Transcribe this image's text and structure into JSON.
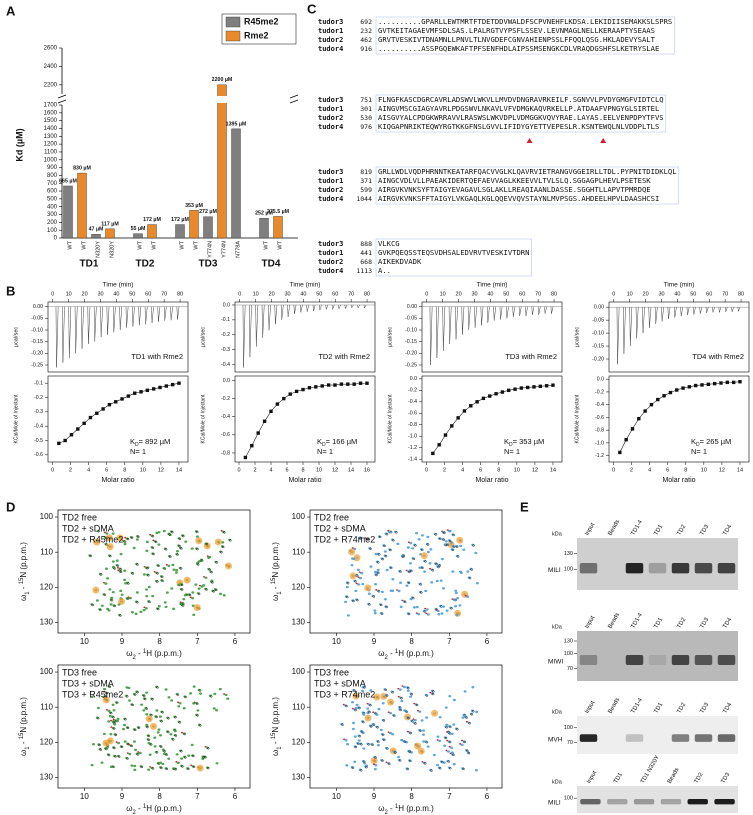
{
  "panel_labels": [
    "A",
    "B",
    "C",
    "D",
    "E"
  ],
  "chart_data": [
    {
      "type": "bar",
      "y_label": "Kd (µM)",
      "categories": [
        "WT",
        "WT",
        "N320Y",
        "N320Y",
        "WT",
        "WT",
        "WT",
        "WT",
        "Y774N",
        "Y774N",
        "N778A",
        "WT",
        "WT"
      ],
      "groups": [
        "TD1",
        "TD2",
        "TD3",
        "TD4"
      ],
      "series": [
        {
          "name": "R45me2",
          "color": "#7f7f7f",
          "values": [
            665,
            null,
            47,
            null,
            55,
            null,
            172,
            null,
            272,
            null,
            1395,
            252,
            null
          ],
          "value_labels": [
            "665 µM",
            null,
            "47 µM",
            null,
            "55 µM",
            null,
            "172 µM",
            null,
            "272 µM",
            null,
            "1395 µM",
            "252 µM",
            null
          ]
        },
        {
          "name": "Rme2",
          "color": "#e8892b",
          "values": [
            null,
            830,
            null,
            117,
            null,
            172,
            null,
            353,
            null,
            2200,
            null,
            null,
            275.5
          ],
          "value_labels": [
            null,
            "830 µM",
            null,
            "117 µM",
            null,
            "172 µM",
            null,
            "353 µM",
            null,
            "2200 µM",
            null,
            null,
            "275.5 µM"
          ]
        }
      ],
      "ylim": [
        0,
        2600
      ],
      "y_break": [
        1700,
        2100
      ],
      "yticks": [
        0,
        100,
        200,
        300,
        400,
        500,
        600,
        700,
        800,
        900,
        1000,
        1100,
        1200,
        1300,
        1400,
        1500,
        1600,
        1700,
        2200,
        2400,
        2600
      ]
    },
    {
      "type": "itc",
      "title": "TD1 with Rme2",
      "time_label": "Time (min)",
      "raw_label": "µcal/sec",
      "time_xlim": [
        -3,
        85
      ],
      "time_xticks": [
        0,
        10,
        20,
        30,
        40,
        50,
        60,
        70,
        80
      ],
      "raw_ylim": [
        -0.28,
        0.02
      ],
      "raw_yticks": [
        {
          "value": 0,
          "label": "0.00"
        },
        -0.05,
        {
          "value": -0.1,
          "label": "-0.10"
        },
        -0.15,
        {
          "value": -0.2,
          "label": "-0.20"
        },
        -0.25
      ],
      "peak_times": [
        2,
        6,
        10,
        14,
        18,
        22,
        26,
        30,
        34,
        38,
        42,
        46,
        50,
        54,
        58,
        62,
        66,
        70,
        74,
        78
      ],
      "peak_values": [
        -0.26,
        -0.24,
        -0.22,
        -0.2,
        -0.18,
        -0.16,
        -0.15,
        -0.13,
        -0.12,
        -0.11,
        -0.1,
        -0.09,
        -0.085,
        -0.08,
        -0.075,
        -0.07,
        -0.065,
        -0.06,
        -0.058,
        -0.055
      ],
      "x_label": "Molar ratio",
      "y_label": "KCal/Mole of Injectant",
      "xlim": [
        -0.5,
        15
      ],
      "xticks": [
        0,
        2,
        4,
        6,
        8,
        10,
        12,
        14
      ],
      "ylim": [
        -0.65,
        -0.05
      ],
      "yticks": [
        -0.6,
        -0.5,
        -0.4,
        -0.3,
        -0.2,
        -0.1
      ],
      "x": [
        0.7,
        1.4,
        2.1,
        2.8,
        3.5,
        4.2,
        4.9,
        5.6,
        6.3,
        7,
        7.7,
        8.4,
        9.1,
        9.8,
        10.5,
        11.2,
        11.9,
        12.6,
        13.3,
        14
      ],
      "values": [
        -0.52,
        -0.5,
        -0.46,
        -0.42,
        -0.38,
        -0.34,
        -0.31,
        -0.28,
        -0.25,
        -0.23,
        -0.21,
        -0.19,
        -0.17,
        -0.16,
        -0.15,
        -0.14,
        -0.13,
        -0.12,
        -0.11,
        -0.1
      ],
      "kd": [
        "K",
        "D",
        "= 892 µM"
      ],
      "n_label": "N= 1"
    },
    {
      "type": "itc",
      "title": "TD2 with Rme2",
      "time_label": "Time (min)",
      "raw_label": "µcal/sec",
      "time_xlim": [
        -3,
        85
      ],
      "time_xticks": [
        0,
        10,
        20,
        30,
        40,
        50,
        60,
        70,
        80
      ],
      "raw_ylim": [
        -0.45,
        0.02
      ],
      "raw_yticks": [
        {
          "value": 0,
          "label": "0.0"
        },
        -0.1,
        -0.2,
        -0.3,
        -0.4
      ],
      "peak_times": [
        2,
        6,
        10,
        14,
        18,
        22,
        26,
        30,
        34,
        38,
        42,
        46,
        50,
        54,
        58,
        62,
        66,
        70,
        74,
        78
      ],
      "peak_values": [
        -0.42,
        -0.35,
        -0.28,
        -0.22,
        -0.17,
        -0.13,
        -0.1,
        -0.08,
        -0.06,
        -0.05,
        -0.045,
        -0.04,
        -0.035,
        -0.03,
        -0.03,
        -0.025,
        -0.025,
        -0.02,
        -0.02,
        -0.02
      ],
      "x_label": "Molar ratio",
      "y_label": "KCal/Mole of Injectant",
      "xlim": [
        -0.5,
        17
      ],
      "xticks": [
        0,
        2,
        4,
        6,
        8,
        10,
        12,
        14,
        16
      ],
      "ylim": [
        -0.9,
        0.05
      ],
      "yticks": [
        -0.8,
        -0.6,
        -0.4,
        -0.2,
        {
          "value": 0,
          "label": "0.0"
        }
      ],
      "x": [
        0.8,
        1.6,
        2.4,
        3.2,
        4,
        4.8,
        5.6,
        6.4,
        7.2,
        8,
        8.8,
        9.6,
        10.4,
        11.2,
        12,
        12.8,
        13.6,
        14.4,
        15.2,
        16
      ],
      "values": [
        -0.85,
        -0.72,
        -0.58,
        -0.45,
        -0.34,
        -0.26,
        -0.2,
        -0.15,
        -0.12,
        -0.1,
        -0.08,
        -0.07,
        -0.06,
        -0.05,
        -0.05,
        -0.04,
        -0.04,
        -0.04,
        -0.03,
        -0.03
      ],
      "kd": [
        "K",
        "D",
        "= 166 µM"
      ],
      "n_label": "N= 1"
    },
    {
      "type": "itc",
      "title": "TD3 with Rme2",
      "time_label": "Time (min)",
      "raw_label": "µcal/sec",
      "time_xlim": [
        -3,
        85
      ],
      "time_xticks": [
        0,
        10,
        20,
        30,
        40,
        50,
        60,
        70,
        80
      ],
      "raw_ylim": [
        -0.28,
        0.02
      ],
      "raw_yticks": [
        {
          "value": 0,
          "label": "0.00"
        },
        -0.05,
        {
          "value": -0.1,
          "label": "-0.10"
        },
        -0.15,
        {
          "value": -0.2,
          "label": "-0.20"
        },
        -0.25
      ],
      "peak_times": [
        2,
        6,
        10,
        14,
        18,
        22,
        26,
        30,
        34,
        38,
        42,
        46,
        50,
        54,
        58,
        62,
        66,
        70,
        74,
        78
      ],
      "peak_values": [
        -0.25,
        -0.22,
        -0.19,
        -0.16,
        -0.14,
        -0.12,
        -0.1,
        -0.09,
        -0.08,
        -0.07,
        -0.06,
        -0.055,
        -0.05,
        -0.045,
        -0.04,
        -0.04,
        -0.035,
        -0.035,
        -0.03,
        -0.03
      ],
      "x_label": "Molar ratio",
      "y_label": "KCal/Mole of Injectant",
      "xlim": [
        -0.5,
        15
      ],
      "xticks": [
        0,
        2,
        4,
        6,
        8,
        10,
        12,
        14
      ],
      "ylim": [
        -1.45,
        0.05
      ],
      "yticks": [
        -1.4,
        -1.2,
        {
          "value": -1,
          "label": "-1.0"
        },
        -0.8,
        -0.6,
        -0.4,
        -0.2,
        {
          "value": 0,
          "label": "0.0"
        }
      ],
      "x": [
        0.7,
        1.4,
        2.1,
        2.8,
        3.5,
        4.2,
        4.9,
        5.6,
        6.3,
        7,
        7.7,
        8.4,
        9.1,
        9.8,
        10.5,
        11.2,
        11.9,
        12.6,
        13.3,
        14
      ],
      "values": [
        -1.3,
        -1.15,
        -0.98,
        -0.82,
        -0.68,
        -0.56,
        -0.47,
        -0.4,
        -0.34,
        -0.3,
        -0.26,
        -0.23,
        -0.2,
        -0.18,
        -0.16,
        -0.15,
        -0.14,
        -0.13,
        -0.12,
        -0.11
      ],
      "kd": [
        "K",
        "D",
        "= 353 µM"
      ],
      "n_label": "N= 1"
    },
    {
      "type": "itc",
      "title": "TD4 with Rme2",
      "time_label": "Time (min)",
      "raw_label": "µcal/sec",
      "time_xlim": [
        -3,
        85
      ],
      "time_xticks": [
        0,
        10,
        20,
        30,
        40,
        50,
        60,
        70,
        80
      ],
      "raw_ylim": [
        -0.25,
        0.02
      ],
      "raw_yticks": [
        {
          "value": 0,
          "label": "0.00"
        },
        -0.05,
        {
          "value": -0.1,
          "label": "-0.10"
        },
        -0.15,
        {
          "value": -0.2,
          "label": "-0.20"
        }
      ],
      "peak_times": [
        2,
        6,
        10,
        14,
        18,
        22,
        26,
        30,
        34,
        38,
        42,
        46,
        50,
        54,
        58,
        62,
        66,
        70,
        74,
        78
      ],
      "peak_values": [
        -0.22,
        -0.18,
        -0.15,
        -0.12,
        -0.1,
        -0.08,
        -0.065,
        -0.055,
        -0.045,
        -0.04,
        -0.035,
        -0.03,
        -0.028,
        -0.025,
        -0.022,
        -0.02,
        -0.02,
        -0.018,
        -0.018,
        -0.016
      ],
      "x_label": "Molar ratio",
      "y_label": "KCal/Mole of Injectant",
      "xlim": [
        -0.5,
        15
      ],
      "xticks": [
        0,
        2,
        4,
        6,
        8,
        10,
        12,
        14
      ],
      "ylim": [
        -1.3,
        0.05
      ],
      "yticks": [
        -1.2,
        {
          "value": -1,
          "label": "-1.0"
        },
        -0.8,
        -0.6,
        -0.4,
        -0.2,
        {
          "value": 0,
          "label": "0.0"
        }
      ],
      "x": [
        0.7,
        1.4,
        2.1,
        2.8,
        3.5,
        4.2,
        4.9,
        5.6,
        6.3,
        7,
        7.7,
        8.4,
        9.1,
        9.8,
        10.5,
        11.2,
        11.9,
        12.6,
        13.3,
        14
      ],
      "values": [
        -1.15,
        -0.95,
        -0.78,
        -0.62,
        -0.5,
        -0.4,
        -0.32,
        -0.26,
        -0.21,
        -0.17,
        -0.14,
        -0.12,
        -0.1,
        -0.09,
        -0.08,
        -0.07,
        -0.06,
        -0.05,
        -0.05,
        -0.04
      ],
      "kd": [
        "K",
        "D",
        "= 265 µM"
      ],
      "n_label": "N= 1"
    }
  ],
  "alignment": {
    "blocks": [
      {
        "rows": [
          {
            "name": "tudor3",
            "start": "692",
            "seq": "..........GPARLLEWTMRTFTDETDDVWALDFSCPVNEHFLKDSA.LEKIDIISEMAKKSLSPRS"
          },
          {
            "name": "tudor1",
            "start": "232",
            "seq": "GVTKEITAGAEVMFSDLSAS.LPALRGTVYPSFLSSEV.LEVNMAGLNELLKERAAPTYSEAAS"
          },
          {
            "name": "tudor2",
            "start": "462",
            "seq": "GRVTVESKIVTDNAMNLLPNVLTLNVGDEFCGNVAHIENPSSLFFQQLQSG.HKLADEVYSALT"
          },
          {
            "name": "tudor4",
            "start": "916",
            "seq": "..........ASSPGQEWKAFTPFSENFHDLAIPSSMSENGKCDLVRAQDGSHFSLKETRYSLAE"
          }
        ]
      },
      {
        "rows": [
          {
            "name": "tudor3",
            "start": "751",
            "seq": "FLNGFKASCDGRCAVRLADSWVLWKVLLMVDVDNGRAVRKEILF.SGNVVLPVDYGMGFVIDTCLQ"
          },
          {
            "name": "tudor1",
            "start": "301",
            "seq": "AINGVMSCGIAGYAVRLPDGSWVLNKAVLVFVDMGKAQVRKELLP.ATDAAFVPNGYGLSIRTEL"
          },
          {
            "name": "tudor2",
            "start": "530",
            "seq": "AISGVYALCPDGKWRRAVVLRASWSLWKVDPLVDMGGKVQVYRAE.LAYAS.EELVENPDPYTFVS"
          },
          {
            "name": "tudor4",
            "start": "976",
            "seq": "KIQGAPNRIKTEQWYRGTKKGFNSLGVVLIFIDYGYETTVEPESLR.KSNTEWQLNLVDDPLTLS"
          }
        ]
      },
      {
        "rows": [
          {
            "name": "tudor3",
            "start": "819",
            "seq": "GRLLWDLVQDPHRNNTKEATARFQACVVGLKLQAVRVIETRANGVGGEIRLLTDL.PYPNITDIDKLQL"
          },
          {
            "name": "tudor1",
            "start": "371",
            "seq": "AINGCVDLVLLPAEAKIDERTQEFAEVVAGLKKEEVVLTVLSLQ.SGGAGPLHEVLPSETESK"
          },
          {
            "name": "tudor2",
            "start": "599",
            "seq": "AIRGVKVNKSYFTAIGYEVAGAVLSGLAKLLREAQIAANLDASSE.SGGHTLLAPVTPMRDQE"
          },
          {
            "name": "tudor4",
            "start": "1044",
            "seq": "AIRGVKVNKSFFTAIGYLVKGAQLKGLQQEVVQVSTAYNLMVPSGS.AHDEELHPVLDAASHCSI"
          }
        ]
      },
      {
        "rows": [
          {
            "name": "tudor3",
            "start": "888",
            "seq": "VLKCG"
          },
          {
            "name": "tudor1",
            "start": "441",
            "seq": "GVKPQEQSSTEQSVDHSALEDVRVTVESKIVTDRN"
          },
          {
            "name": "tudor2",
            "start": "668",
            "seq": "AIKEKDVADK"
          },
          {
            "name": "tudor4",
            "start": "1113",
            "seq": "A.."
          }
        ]
      }
    ]
  },
  "nmr": {
    "x_label": [
      "ω",
      "2",
      " - ",
      "1",
      "H (p.p.m.)"
    ],
    "y_label": [
      "ω",
      "1",
      " - ",
      "15",
      "N (p.p.m.)"
    ],
    "xticks": [
      10,
      9,
      8,
      7,
      6
    ],
    "yticks": [
      100,
      110,
      120,
      130
    ],
    "xlim": [
      10.7,
      5.6
    ],
    "ylim": [
      98,
      133
    ],
    "panels": [
      {
        "legend": [
          {
            "text": "TD2 free",
            "color": "#000000"
          },
          {
            "text": "TD2 + sDMA",
            "color": "#d0202a"
          },
          {
            "text": "TD2 + R45me2",
            "color": "#3f9a3f"
          }
        ]
      },
      {
        "legend": [
          {
            "text": "TD2 free",
            "color": "#000000"
          },
          {
            "text": "TD2 + sDMA",
            "color": "#d0202a"
          },
          {
            "text": "TD2 + R74me2",
            "color": "#4f9fd8"
          }
        ]
      },
      {
        "legend": [
          {
            "text": "TD3 free",
            "color": "#000000"
          },
          {
            "text": "TD3 + sDMA",
            "color": "#d0202a"
          },
          {
            "text": "TD3 + R45me2",
            "color": "#3f9a3f"
          }
        ]
      },
      {
        "legend": [
          {
            "text": "TD3 free",
            "color": "#000000"
          },
          {
            "text": "TD3 + sDMA",
            "color": "#d0202a"
          },
          {
            "text": "TD3 + R74me2",
            "color": "#4f9fd8"
          }
        ]
      }
    ]
  },
  "blots": {
    "kda": "kDa",
    "items": [
      {
        "lanes": [
          "Input",
          "Beads",
          "TD1-4",
          "TD1",
          "TD2",
          "TD3",
          "TD4"
        ],
        "markers": [
          "130",
          "100"
        ],
        "protein": "MILI"
      },
      {
        "lanes": [
          "Input",
          "Beads",
          "TD1-4",
          "TD1",
          "TD2",
          "TD3",
          "TD4"
        ],
        "markers": [
          "130",
          "100",
          "70"
        ],
        "protein": "MIWI"
      },
      {
        "lanes": [
          "Input",
          "Beads",
          "TD1-4",
          "TD1",
          "TD2",
          "TD3",
          "TD4"
        ],
        "markers": [
          "100",
          "70"
        ],
        "protein": "MVH"
      },
      {
        "lanes": [
          "Input",
          "TD1",
          "TD1 N320Y",
          "Beads",
          "TD2",
          "TD3"
        ],
        "markers": [
          "100"
        ],
        "protein": "MILI"
      }
    ]
  }
}
